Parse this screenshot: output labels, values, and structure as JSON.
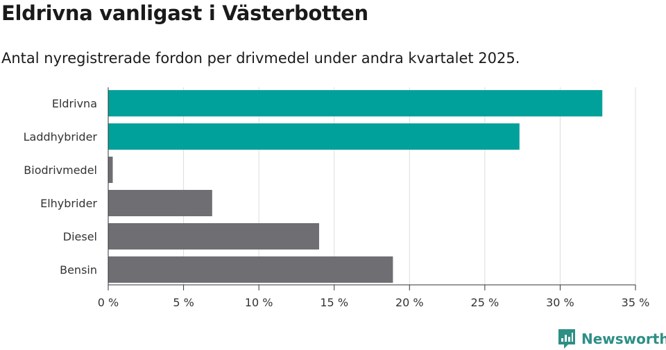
{
  "header": {
    "title": "Eldrivna vanligast i Västerbotten",
    "subtitle": "Antal nyregistrerade fordon per drivmedel under andra kvartalet 2025."
  },
  "chart_data": {
    "type": "bar",
    "orientation": "horizontal",
    "categories": [
      "Eldrivna",
      "Laddhybrider",
      "Biodrivmedel",
      "Elhybrider",
      "Diesel",
      "Bensin"
    ],
    "values": [
      32.8,
      27.3,
      0.3,
      6.9,
      14.0,
      18.9
    ],
    "value_unit": "%",
    "xlim": [
      0,
      35
    ],
    "x_ticks": [
      0,
      5,
      10,
      15,
      20,
      25,
      30,
      35
    ],
    "x_tick_labels": [
      "0 %",
      "5 %",
      "10 %",
      "15 %",
      "20 %",
      "25 %",
      "30 %",
      "35 %"
    ],
    "grid": "vertical",
    "colors": [
      "#00a19a",
      "#00a19a",
      "#6e6e73",
      "#6e6e73",
      "#6e6e73",
      "#6e6e73"
    ]
  },
  "branding": {
    "logo_name": "newsworthy-logo-icon",
    "text": "Newsworthy",
    "color": "#2d8f86"
  }
}
